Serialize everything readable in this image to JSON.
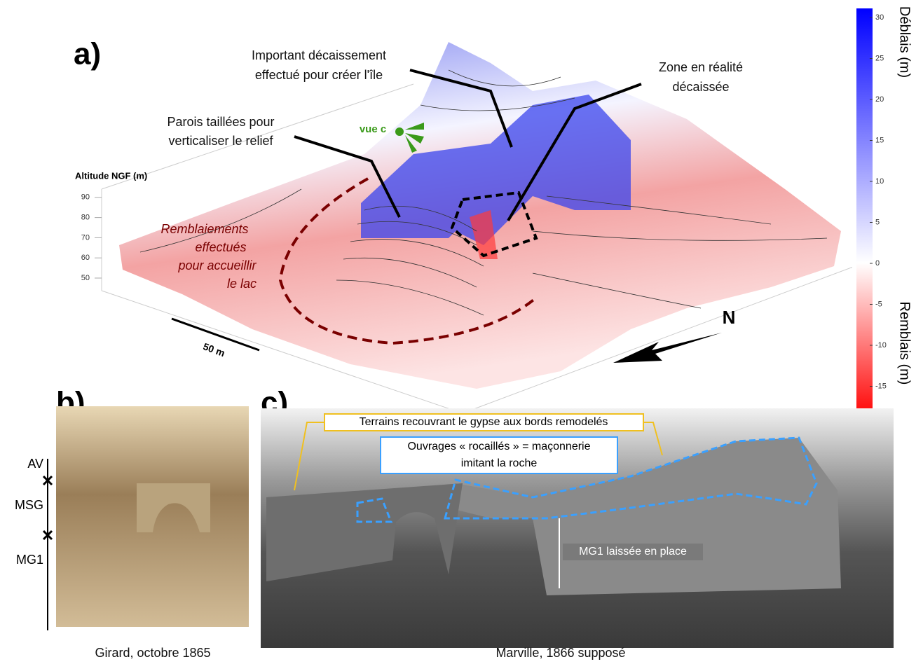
{
  "panel_a": {
    "label": "a)",
    "axis_label": "Altitude NGF (m)",
    "altitude_ticks": [
      90,
      80,
      70,
      60,
      50
    ],
    "annotations": [
      {
        "lines": [
          "Important décaissement",
          "effectué pour créer l'île"
        ]
      },
      {
        "lines": [
          "Zone en réalité",
          "décaissée"
        ]
      },
      {
        "lines": [
          "Parois taillées pour",
          "verticaliser le relief"
        ]
      },
      {
        "lines": [
          "Remblaiements",
          "effectués",
          "pour accueillir",
          "le lac"
        ]
      }
    ],
    "view_label": "vue c",
    "scale_label": "50 m",
    "north_label": "N",
    "colorbar": {
      "top_label": "Déblais (m)",
      "bottom_label": "Remblais (m)",
      "ticks": [
        30,
        25,
        20,
        15,
        10,
        5,
        0,
        -5,
        -10,
        -15
      ]
    }
  },
  "panel_b": {
    "label": "b)",
    "layers": [
      "AV",
      "MSG",
      "MG1"
    ],
    "caption": "Girard, octobre 1865"
  },
  "panel_c": {
    "label": "c)",
    "annotations": [
      {
        "lines": [
          "Terrains recouvrant le gypse aux bords remodelés"
        ]
      },
      {
        "lines": [
          "Ouvrages « rocaillés » = maçonnerie",
          "imitant la roche"
        ]
      },
      {
        "lines": [
          "MG1 laissée en place"
        ]
      }
    ],
    "caption": "Marville, 1866 supposé"
  }
}
